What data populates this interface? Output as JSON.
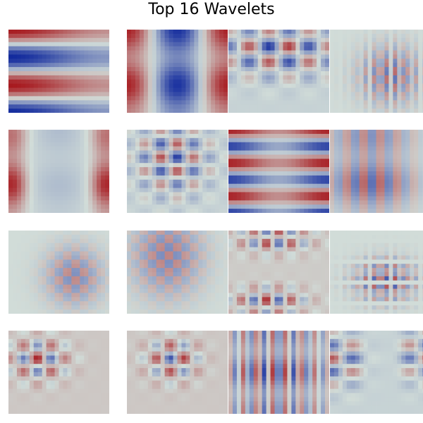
{
  "title": "Top 16 Wavelets",
  "colors": {
    "neutral": "#d1dcd8",
    "positive": "#a50f15",
    "negative": "#08219a"
  },
  "panels": [
    {
      "x": [
        1,
        2,
        3
      ],
      "y": [
        3,
        4,
        1
      ],
      "sx": [
        0,
        1,
        0
      ],
      "sy": [
        0,
        1,
        0
      ],
      "amp": 0.95,
      "shape": "rows",
      "offset": 0.0
    },
    {
      "x": [
        2,
        2
      ],
      "y": [
        3,
        1
      ],
      "sx": [
        0,
        1
      ],
      "sy": [
        0,
        2
      ],
      "amp": 0.9,
      "shape": "cols",
      "offset": 0.0
    },
    {
      "x": [
        5,
        1
      ],
      "y": [
        5,
        1
      ],
      "sx": [
        0,
        0
      ],
      "sy": [
        0,
        0
      ],
      "amp": 0.9,
      "shape": "checker-top",
      "offset": -0.05
    },
    {
      "x": [
        14,
        1
      ],
      "y": [
        10,
        1
      ],
      "sx": [
        0,
        0
      ],
      "sy": [
        0,
        0
      ],
      "amp": 0.8,
      "shape": "checker-center",
      "offset": 0.0
    },
    {
      "x": [
        2,
        2
      ],
      "y": [
        3,
        1
      ],
      "sx": [
        0,
        1
      ],
      "sy": [
        0,
        1
      ],
      "amp": 0.9,
      "shape": "cols-edges",
      "offset": -0.03
    },
    {
      "x": [
        6,
        1
      ],
      "y": [
        6,
        1
      ],
      "sx": [
        0,
        0
      ],
      "sy": [
        0,
        0
      ],
      "amp": 0.85,
      "shape": "checker-top-left",
      "offset": -0.05
    },
    {
      "x": [
        2,
        1
      ],
      "y": [
        5,
        1
      ],
      "sx": [
        0,
        0
      ],
      "sy": [
        0,
        0
      ],
      "amp": 0.9,
      "shape": "rows",
      "offset": 0.05
    },
    {
      "x": [
        12,
        1
      ],
      "y": [
        3,
        1
      ],
      "sx": [
        0,
        0
      ],
      "sy": [
        0,
        0
      ],
      "amp": 0.85,
      "shape": "cols-center",
      "offset": 0.0
    },
    {
      "x": [
        12,
        1
      ],
      "y": [
        10,
        1
      ],
      "sx": [
        0,
        0
      ],
      "sy": [
        0,
        0
      ],
      "amp": 0.8,
      "shape": "checker-right",
      "offset": 0.0
    },
    {
      "x": [
        12,
        1
      ],
      "y": [
        10,
        1
      ],
      "sx": [
        0,
        0
      ],
      "sy": [
        0,
        0
      ],
      "amp": 0.85,
      "shape": "checker-top-center",
      "offset": 0.0
    },
    {
      "x": [
        8,
        1
      ],
      "y": [
        6,
        1
      ],
      "sx": [
        0,
        0
      ],
      "sy": [
        0,
        0
      ],
      "amp": 0.85,
      "shape": "checker-top-bottom",
      "offset": 0.08
    },
    {
      "x": [
        14,
        1
      ],
      "y": [
        12,
        1
      ],
      "sx": [
        0,
        0
      ],
      "sy": [
        0,
        0
      ],
      "amp": 0.8,
      "shape": "checker-bottom-center",
      "offset": 0.0
    },
    {
      "x": [
        7,
        1
      ],
      "y": [
        6,
        1
      ],
      "sx": [
        0,
        0
      ],
      "sy": [
        0,
        0
      ],
      "amp": 0.85,
      "shape": "checker-left",
      "offset": 0.1
    },
    {
      "x": [
        7,
        1
      ],
      "y": [
        6,
        1
      ],
      "sx": [
        0,
        0
      ],
      "sy": [
        0,
        0
      ],
      "amp": 0.85,
      "shape": "checker-center-left",
      "offset": 0.1
    },
    {
      "x": [
        14,
        1
      ],
      "y": [
        4,
        1
      ],
      "sx": [
        0,
        0
      ],
      "sy": [
        0,
        0
      ],
      "amp": 0.85,
      "shape": "cols-stripes",
      "offset": 0.0
    },
    {
      "x": [
        4,
        1
      ],
      "y": [
        6,
        1
      ],
      "sx": [
        0,
        0
      ],
      "sy": [
        0,
        0
      ],
      "amp": 0.85,
      "shape": "checker-sides",
      "offset": -0.05
    }
  ]
}
